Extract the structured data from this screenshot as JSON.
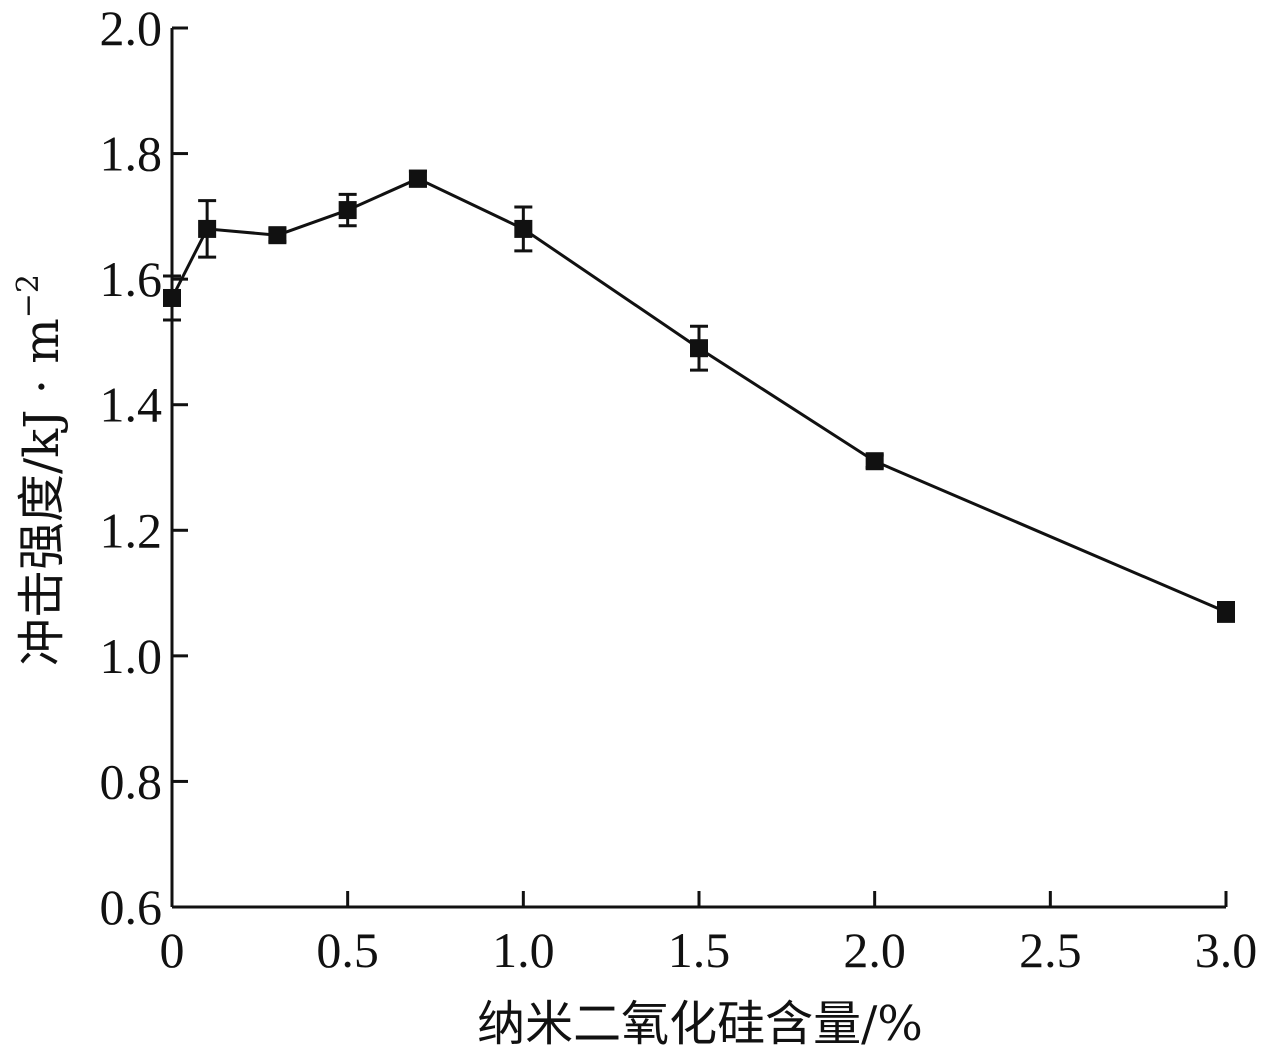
{
  "chart_data": {
    "type": "line",
    "xlabel": "纳米二氧化硅含量/%",
    "ylabel": "冲击强度/kJ · m",
    "ylabel_sup": "−2",
    "xlim": [
      0,
      3.0
    ],
    "ylim": [
      0.6,
      2.0
    ],
    "x_ticks": [
      0,
      0.5,
      1.0,
      1.5,
      2.0,
      2.5,
      3.0
    ],
    "x_tick_labels": [
      "0",
      "0.5",
      "1.0",
      "1.5",
      "2.0",
      "2.5",
      "3.0"
    ],
    "y_ticks": [
      0.6,
      0.8,
      1.0,
      1.2,
      1.4,
      1.6,
      1.8,
      2.0
    ],
    "y_tick_labels": [
      "0.6",
      "0.8",
      "1.0",
      "1.2",
      "1.4",
      "1.6",
      "1.8",
      "2.0"
    ],
    "grid": false,
    "series": [
      {
        "color": "#111111",
        "marker": "square",
        "x": [
          0,
          0.1,
          0.3,
          0.5,
          0.7,
          1.0,
          1.5,
          2.0,
          3.0
        ],
        "y": [
          1.57,
          1.68,
          1.67,
          1.71,
          1.76,
          1.68,
          1.49,
          1.31,
          1.07
        ],
        "error": [
          0.035,
          0.045,
          0.01,
          0.025,
          0.012,
          0.035,
          0.035,
          0.01,
          0.015
        ]
      }
    ]
  }
}
